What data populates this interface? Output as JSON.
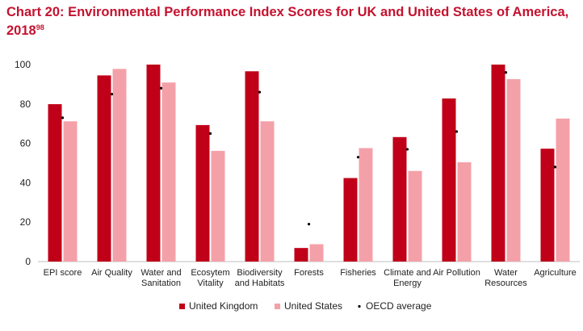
{
  "chart_data": {
    "type": "bar",
    "title": "Chart 20: Environmental Performance Index Scores for UK and United States of America, 2018",
    "title_superscript": "98",
    "categories": [
      "EPI score",
      "Air Quality",
      "Water and Sanitation",
      "Ecosytem Vitality",
      "Biodiversity and Habitats",
      "Forests",
      "Fisheries",
      "Climate and Energy",
      "Air Pollution",
      "Water Resources",
      "Agriculture"
    ],
    "category_lines": [
      [
        "EPI score"
      ],
      [
        "Air Quality"
      ],
      [
        "Water and",
        "Sanitation"
      ],
      [
        "Ecosytem",
        "Vitality"
      ],
      [
        "Biodiversity",
        "and Habitats"
      ],
      [
        "Forests"
      ],
      [
        "Fisheries"
      ],
      [
        "Climate and",
        "Energy"
      ],
      [
        "Air Pollution"
      ],
      [
        "Water",
        "Resources"
      ],
      [
        "Agriculture"
      ]
    ],
    "series": [
      {
        "name": "United Kingdom",
        "color": "#c00018",
        "values": [
          79.9,
          94.5,
          100,
          69.3,
          96.6,
          6.9,
          42.4,
          63.2,
          82.8,
          100,
          57.3
        ]
      },
      {
        "name": "United States",
        "color": "#f4a0a8",
        "values": [
          71.2,
          97.8,
          90.9,
          56.2,
          71.2,
          8.8,
          57.6,
          46.0,
          50.4,
          92.6,
          72.6
        ]
      }
    ],
    "markers": {
      "name": "OECD average",
      "color": "#000000",
      "values": [
        73,
        85,
        88,
        65,
        86,
        19,
        53,
        57,
        66,
        96,
        48
      ]
    },
    "ylim": [
      0,
      100
    ],
    "yticks": [
      0,
      20,
      40,
      60,
      80,
      100
    ],
    "xlabel": "",
    "ylabel": "",
    "grid": false,
    "legend_position": "bottom",
    "legend": [
      {
        "label": "United Kingdom",
        "kind": "square",
        "color": "#c00018"
      },
      {
        "label": "United States",
        "kind": "square",
        "color": "#f4a0a8"
      },
      {
        "label": "OECD average",
        "kind": "dot",
        "color": "#000000"
      }
    ]
  }
}
